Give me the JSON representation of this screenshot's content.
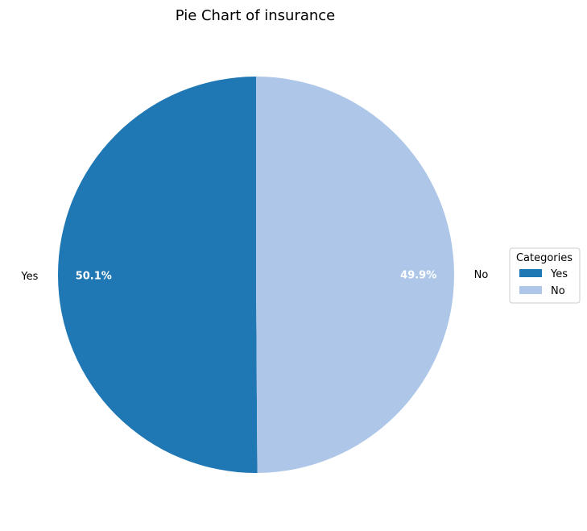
{
  "chart_data": {
    "type": "pie",
    "title": "Pie Chart of insurance",
    "categories": [
      "Yes",
      "No"
    ],
    "values": [
      50.1,
      49.9
    ],
    "percent_labels": [
      "50.1%",
      "49.9%"
    ],
    "colors": [
      "#1f77b4",
      "#aec7e8"
    ],
    "start_angle_deg": 90,
    "direction": "counterclockwise",
    "legend": {
      "title": "Categories",
      "position": "right",
      "entries": [
        "Yes",
        "No"
      ]
    }
  }
}
